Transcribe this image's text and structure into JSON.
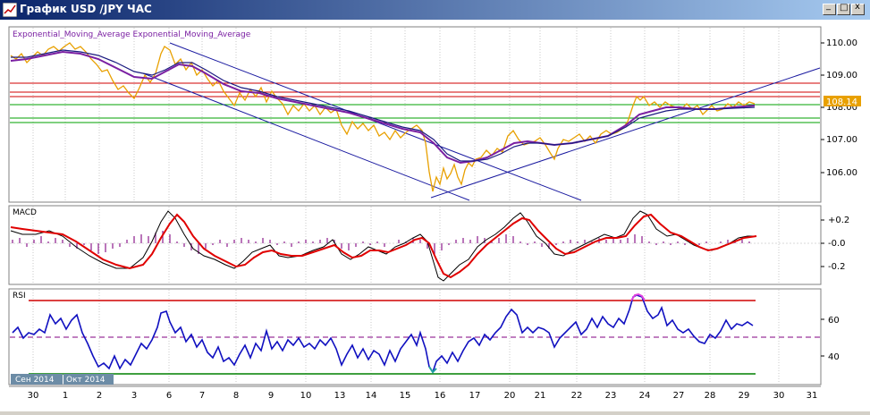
{
  "window": {
    "title": "График USD /JPY  ЧАС",
    "minimize_glyph": "_",
    "maximize_glyph": "□",
    "close_glyph": "x"
  },
  "price_panel": {
    "indicator_label": "Exponential_Moving_Average Exponential_Moving_Average",
    "axis_ticks": [
      "110.00",
      "109.00",
      "108.00",
      "107.00",
      "106.00"
    ],
    "current_price": "108.14"
  },
  "macd_panel": {
    "label": "MACD",
    "axis_ticks": [
      "+0.2",
      "-0.0",
      "-0.2"
    ]
  },
  "rsi_panel": {
    "label": "RSI",
    "axis_ticks": [
      "60",
      "40"
    ]
  },
  "time_axis": {
    "days": [
      "30",
      "1",
      "2",
      "3",
      "6",
      "7",
      "8",
      "9",
      "10",
      "13",
      "14",
      "15",
      "16",
      "17",
      "20",
      "21",
      "22",
      "23",
      "24",
      "27",
      "28",
      "29",
      "30",
      "31"
    ],
    "months": [
      "Сен 2014",
      "Окт 2014"
    ]
  },
  "colors": {
    "price": "#e8a000",
    "ema_fast": "#7a1fa2",
    "ema_slow": "#1a1a80",
    "channel": "#1a1aa0",
    "resistance": "#d00000",
    "support": "#00a000",
    "macd_signal": "#e00000",
    "macd_line": "#000000",
    "macd_hist": "#8b1a8b",
    "rsi": "#1010c0",
    "rsi_overbought": "#d00000",
    "rsi_oversold": "#008000",
    "rsi_mid": "#800080",
    "price_label_bg": "#e8a000"
  },
  "icons": [
    "chart-window-icon"
  ]
}
